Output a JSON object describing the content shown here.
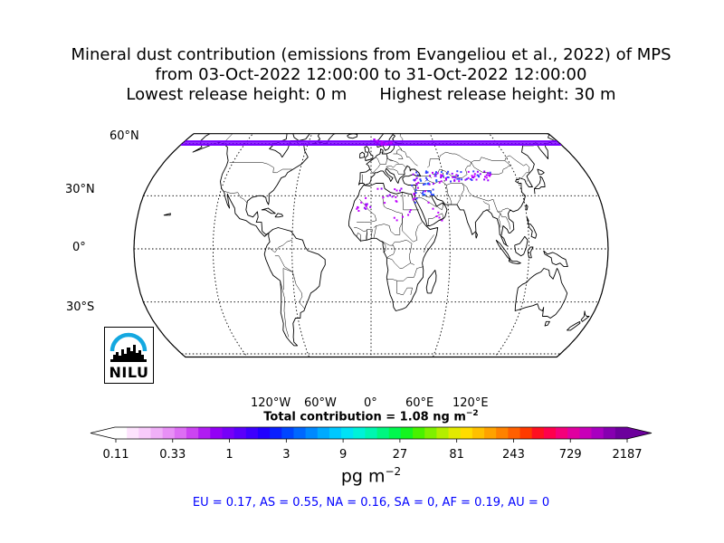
{
  "title": {
    "line1": "Mineral dust contribution (emissions from Evangeliou et al., 2022) of MPS",
    "line2": "from 03-Oct-2022 12:00:00 to 31-Oct-2022 12:00:00",
    "line3_left": "Lowest release height: 0 m",
    "line3_right": "Highest release height: 30 m"
  },
  "map": {
    "projection": "robinson",
    "lat_labels": [
      "60°N",
      "30°N",
      "0°",
      "30°S"
    ],
    "lon_labels": [
      "120°W",
      "60°W",
      "0°",
      "60°E",
      "120°E"
    ],
    "release_band_color": "#7b00ff",
    "deposit_colors": [
      "#c000ff",
      "#9a00ff",
      "#3c3cff",
      "#1e5cff"
    ]
  },
  "total": {
    "prefix": "Total contribution = 1.08 ng m",
    "exponent": "−2"
  },
  "colorbar": {
    "tick_labels": [
      "0.11",
      "0.33",
      "1",
      "3",
      "9",
      "27",
      "81",
      "243",
      "729",
      "2187"
    ],
    "unit_base": "pg m",
    "unit_exponent": "−2",
    "colors": [
      "#ffffff",
      "#fde3fd",
      "#f8cbfb",
      "#f0b0f8",
      "#e890f6",
      "#dd6ef4",
      "#cc44f2",
      "#b01cf2",
      "#9300f5",
      "#7600f8",
      "#5a00fb",
      "#3d00fe",
      "#2000ff",
      "#0a20ff",
      "#0046ff",
      "#0068ff",
      "#0089ff",
      "#00aaff",
      "#00c8ff",
      "#00e2f5",
      "#00f2d8",
      "#00f6b0",
      "#00f780",
      "#00f74e",
      "#14f520",
      "#48f200",
      "#7ef000",
      "#b4ee00",
      "#e2ea00",
      "#ffdc00",
      "#ffc000",
      "#ffa200",
      "#ff8200",
      "#ff6000",
      "#ff3a00",
      "#ff1020",
      "#ff004c",
      "#f4007a",
      "#e000a0",
      "#c800b8",
      "#a800c0",
      "#8600b0",
      "#6c009c"
    ]
  },
  "regions": "EU = 0.17,  AS = 0.55,  NA = 0.16,  SA = 0,  AF = 0.19,  AU = 0",
  "logo": {
    "text": "NILU",
    "arc_color": "#14a8e0"
  }
}
